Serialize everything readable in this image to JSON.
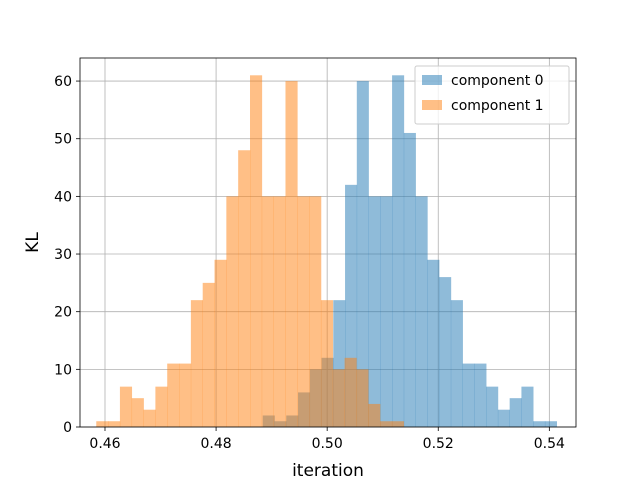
{
  "chart_data": {
    "type": "histogram",
    "xlabel": "iteration",
    "ylabel": "KL",
    "xlim": [
      0.4555,
      0.5448
    ],
    "ylim": [
      0,
      64
    ],
    "xticks": [
      0.46,
      0.48,
      0.5,
      0.52,
      0.54
    ],
    "xtick_labels": [
      "0.46",
      "0.48",
      "0.50",
      "0.52",
      "0.54"
    ],
    "yticks": [
      0,
      10,
      20,
      30,
      40,
      50,
      60
    ],
    "ytick_labels": [
      "0",
      "10",
      "20",
      "30",
      "40",
      "50",
      "60"
    ],
    "grid": true,
    "legend_position": "top-right",
    "series": [
      {
        "name": "component 0",
        "color": "#1f77b4",
        "alpha": 0.5,
        "bin_start": 0.4884,
        "bin_width": 0.002117,
        "counts": [
          2,
          1,
          2,
          6,
          10,
          12,
          22,
          42,
          60,
          40,
          40,
          61,
          51,
          40,
          29,
          26,
          22,
          11,
          11,
          7,
          3,
          5,
          7,
          1,
          1
        ]
      },
      {
        "name": "component 1",
        "color": "#ff7f0e",
        "alpha": 0.5,
        "bin_start": 0.45843,
        "bin_width": 0.002129,
        "counts": [
          1,
          1,
          7,
          5,
          3,
          7,
          11,
          11,
          22,
          25,
          29,
          40,
          48,
          61,
          40,
          40,
          60,
          40,
          40,
          22,
          10,
          12,
          10,
          4,
          1,
          1
        ]
      }
    ]
  }
}
